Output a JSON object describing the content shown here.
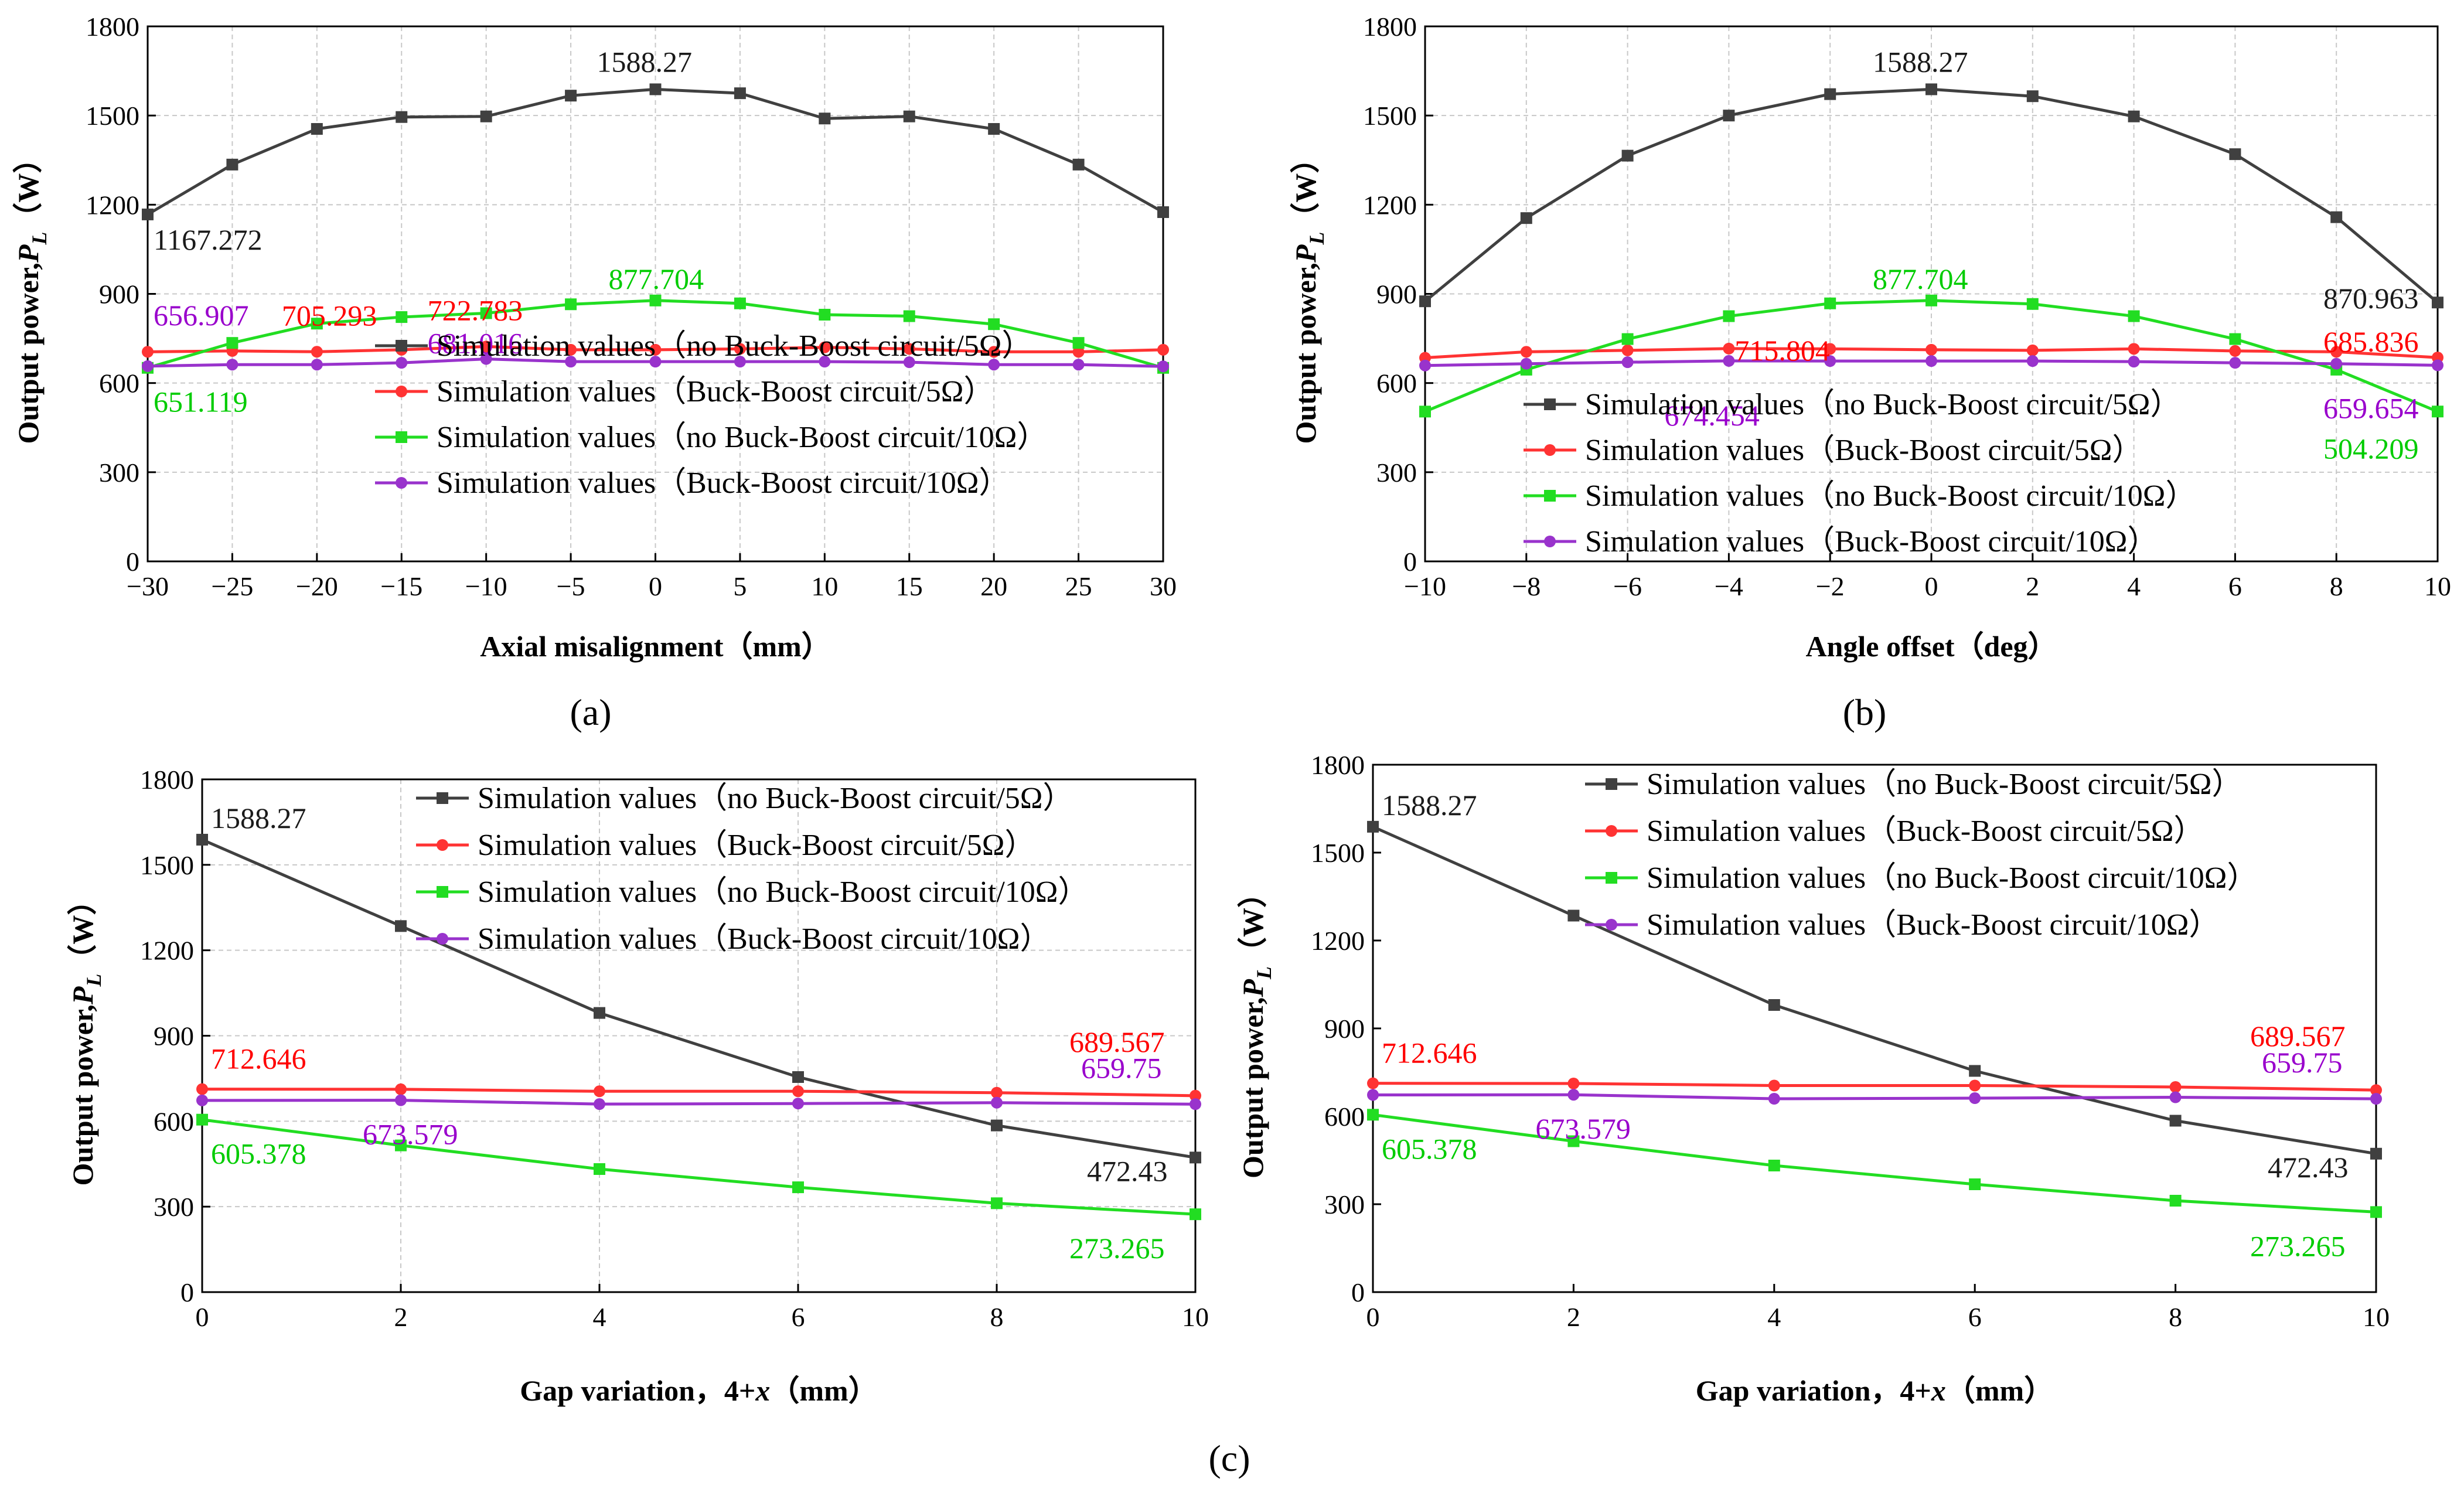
{
  "colors": {
    "no_bb_5": "#404040",
    "bb_5": "#ff3333",
    "no_bb_10": "#22dd22",
    "bb_10": "#9933cc",
    "label_black": "#1a1a1a",
    "label_red": "#ff0000",
    "label_green": "#00cc00",
    "label_purple": "#9900cc"
  },
  "panel_labels": [
    "(a)",
    "(b)",
    "(c)"
  ],
  "chart_data": [
    {
      "type": "line",
      "panel": "a",
      "xlabel": "Axial misalignment（mm）",
      "ylabel_main": "Output power,",
      "ylabel_sym": "P",
      "ylabel_sub": "L",
      "ylabel_unit": "（W）",
      "x": [
        -30,
        -25,
        -20,
        -15,
        -10,
        -5,
        0,
        5,
        10,
        15,
        20,
        25,
        30
      ],
      "x_ticks": [
        -30,
        -25,
        -20,
        -15,
        -10,
        -5,
        0,
        5,
        10,
        15,
        20,
        25,
        30
      ],
      "xlim": [
        -30,
        30
      ],
      "ylim": [
        0,
        1800
      ],
      "y_ticks": [
        0,
        300,
        600,
        900,
        1200,
        1500,
        1800
      ],
      "grid": true,
      "legend_position": "bottom-right",
      "series": [
        {
          "key": "no_bb_5",
          "name": "Simulation values（no Buck-Boost circuit/5Ω）",
          "values": [
            1167.272,
            1335,
            1455,
            1495,
            1497,
            1567,
            1588.27,
            1575,
            1490,
            1497,
            1455,
            1335,
            1175
          ]
        },
        {
          "key": "bb_5",
          "name": "Simulation values（Buck-Boost circuit/5Ω）",
          "values": [
            705,
            708,
            705.293,
            712,
            722.783,
            712,
            712,
            715,
            720,
            715,
            705,
            705,
            712
          ]
        },
        {
          "key": "no_bb_10",
          "name": "Simulation values（no Buck-Boost circuit/10Ω）",
          "values": [
            651.119,
            735,
            800,
            822,
            835,
            865,
            877.704,
            868,
            830,
            825,
            798,
            735,
            651
          ]
        },
        {
          "key": "bb_10",
          "name": "Simulation values（Buck-Boost circuit/10Ω）",
          "values": [
            656.907,
            662,
            662,
            668,
            681.016,
            672,
            672,
            672,
            672,
            670,
            662,
            662,
            656
          ]
        }
      ],
      "annotations": [
        {
          "text": "1588.27",
          "color": "black",
          "x": 0,
          "y": 1588.27,
          "dx": -100,
          "dy": -30
        },
        {
          "text": "1167.272",
          "color": "black",
          "x": -30,
          "y": 1167.272,
          "dx": 10,
          "dy": 60
        },
        {
          "text": "705.293",
          "color": "red",
          "x": -20,
          "y": 705.293,
          "dx": -60,
          "dy": -45
        },
        {
          "text": "722.783",
          "color": "red",
          "x": -10,
          "y": 722.783,
          "dx": -100,
          "dy": -45
        },
        {
          "text": "877.704",
          "color": "green",
          "x": 0,
          "y": 877.704,
          "dx": -80,
          "dy": -20
        },
        {
          "text": "656.907",
          "color": "purple",
          "x": -30,
          "y": 656.907,
          "dx": 10,
          "dy": -70
        },
        {
          "text": "681.016",
          "color": "purple",
          "x": -10,
          "y": 681.016,
          "dx": -100,
          "dy": -10
        },
        {
          "text": "651.119",
          "color": "green",
          "x": -30,
          "y": 651.119,
          "dx": 10,
          "dy": 75
        }
      ]
    },
    {
      "type": "line",
      "panel": "b",
      "xlabel": "Angle offset（deg）",
      "ylabel_main": "Output power,",
      "ylabel_sym": "P",
      "ylabel_sub": "L",
      "ylabel_unit": "（W）",
      "x": [
        -10,
        -8,
        -6,
        -4,
        -2,
        0,
        2,
        4,
        6,
        8,
        10
      ],
      "x_ticks": [
        -10,
        -8,
        -6,
        -4,
        -2,
        0,
        2,
        4,
        6,
        8,
        10
      ],
      "xlim": [
        -10,
        10
      ],
      "ylim": [
        0,
        1800
      ],
      "y_ticks": [
        0,
        300,
        600,
        900,
        1200,
        1500,
        1800
      ],
      "grid": true,
      "legend_position": "bottom-right",
      "series": [
        {
          "key": "no_bb_5",
          "name": "Simulation values（no Buck-Boost circuit/5Ω）",
          "values": [
            875,
            1155,
            1365,
            1500,
            1572,
            1588.27,
            1565,
            1497,
            1370,
            1158,
            870.963
          ]
        },
        {
          "key": "bb_5",
          "name": "Simulation values（Buck-Boost circuit/5Ω）",
          "values": [
            685,
            705,
            710,
            715.804,
            715,
            712,
            710,
            715,
            708,
            705,
            685.836
          ]
        },
        {
          "key": "no_bb_10",
          "name": "Simulation values（no Buck-Boost circuit/10Ω）",
          "values": [
            504,
            645,
            748,
            825,
            868,
            877.704,
            866,
            825,
            748,
            645,
            504.209
          ]
        },
        {
          "key": "bb_10",
          "name": "Simulation values（Buck-Boost circuit/10Ω）",
          "values": [
            659,
            665,
            670,
            674.454,
            674,
            674,
            674,
            672,
            668,
            665,
            659.654
          ]
        }
      ],
      "annotations": [
        {
          "text": "1588.27",
          "color": "black",
          "x": 0,
          "y": 1588.27,
          "dx": -100,
          "dy": -30
        },
        {
          "text": "877.704",
          "color": "green",
          "x": 0,
          "y": 877.704,
          "dx": -100,
          "dy": -20
        },
        {
          "text": "715.804",
          "color": "red",
          "x": -4,
          "y": 715.804,
          "dx": 10,
          "dy": 20
        },
        {
          "text": "674.454",
          "color": "purple",
          "x": -4,
          "y": 674.454,
          "dx": -110,
          "dy": 110
        },
        {
          "text": "870.963",
          "color": "black",
          "x": 10,
          "y": 870.963,
          "dx": -195,
          "dy": 10
        },
        {
          "text": "685.836",
          "color": "red",
          "x": 10,
          "y": 685.836,
          "dx": -195,
          "dy": -10
        },
        {
          "text": "659.654",
          "color": "purple",
          "x": 10,
          "y": 659.654,
          "dx": -195,
          "dy": 90
        },
        {
          "text": "504.209",
          "color": "green",
          "x": 10,
          "y": 504.209,
          "dx": -195,
          "dy": 80
        }
      ]
    },
    {
      "type": "line",
      "panel": "c-left",
      "xlabel_main": "Gap variation，4+",
      "xlabel_sym": "x",
      "xlabel_unit": "（mm）",
      "ylabel_main": "Output power,",
      "ylabel_sym": "P",
      "ylabel_sub": "L",
      "ylabel_unit": "（W）",
      "x": [
        0,
        2,
        4,
        6,
        8,
        10
      ],
      "x_ticks": [
        0,
        2,
        4,
        6,
        8,
        10
      ],
      "xlim": [
        0,
        10
      ],
      "ylim": [
        0,
        1800
      ],
      "y_ticks": [
        0,
        300,
        600,
        900,
        1200,
        1500,
        1800
      ],
      "grid": true,
      "legend_position": "top-right",
      "series": [
        {
          "key": "no_bb_5",
          "name": "Simulation values（no Buck-Boost circuit/5Ω）",
          "values": [
            1588.27,
            1285,
            980,
            755,
            585,
            472.43
          ]
        },
        {
          "key": "bb_5",
          "name": "Simulation values（Buck-Boost circuit/5Ω）",
          "values": [
            712.646,
            712,
            705,
            705,
            700,
            689.567
          ]
        },
        {
          "key": "no_bb_10",
          "name": "Simulation values（no Buck-Boost circuit/10Ω）",
          "values": [
            605.378,
            515,
            432,
            368,
            312,
            273.265
          ]
        },
        {
          "key": "bb_10",
          "name": "Simulation values（Buck-Boost circuit/10Ω）",
          "values": [
            673,
            673.579,
            660,
            662,
            665,
            659.75
          ]
        }
      ],
      "annotations": [
        {
          "text": "1588.27",
          "color": "black",
          "x": 0,
          "y": 1588.27,
          "dx": 15,
          "dy": -20
        },
        {
          "text": "712.646",
          "color": "red",
          "x": 0,
          "y": 712.646,
          "dx": 15,
          "dy": -35
        },
        {
          "text": "673.579",
          "color": "purple",
          "x": 2,
          "y": 673.579,
          "dx": -65,
          "dy": 75
        },
        {
          "text": "605.378",
          "color": "green",
          "x": 0,
          "y": 605.378,
          "dx": 15,
          "dy": 75
        },
        {
          "text": "689.567",
          "color": "red",
          "x": 10,
          "y": 689.567,
          "dx": -215,
          "dy": -75
        },
        {
          "text": "659.75",
          "color": "purple",
          "x": 10,
          "y": 659.75,
          "dx": -195,
          "dy": -45
        },
        {
          "text": "472.43",
          "color": "black",
          "x": 10,
          "y": 472.43,
          "dx": -185,
          "dy": 40
        },
        {
          "text": "273.265",
          "color": "green",
          "x": 10,
          "y": 273.265,
          "dx": -215,
          "dy": 75
        }
      ]
    },
    {
      "type": "line",
      "panel": "c-right",
      "xlabel_main": "Gap variation，4+",
      "xlabel_sym": "x",
      "xlabel_unit": "（mm）",
      "ylabel_main": "Output power,",
      "ylabel_sym": "P",
      "ylabel_sub": "L",
      "ylabel_unit": "（W）",
      "x": [
        0,
        2,
        4,
        6,
        8,
        10
      ],
      "x_ticks": [
        0,
        2,
        4,
        6,
        8,
        10
      ],
      "xlim": [
        0,
        10
      ],
      "ylim": [
        0,
        1800
      ],
      "y_ticks": [
        0,
        300,
        600,
        900,
        1200,
        1500,
        1800
      ],
      "grid": false,
      "legend_position": "top-right",
      "series": [
        {
          "key": "no_bb_5",
          "name": "Simulation values（no Buck-Boost circuit/5Ω）",
          "values": [
            1588.27,
            1285,
            980,
            755,
            585,
            472.43
          ]
        },
        {
          "key": "bb_5",
          "name": "Simulation values（Buck-Boost circuit/5Ω）",
          "values": [
            712.646,
            712,
            705,
            705,
            700,
            689.567
          ]
        },
        {
          "key": "no_bb_10",
          "name": "Simulation values（no Buck-Boost circuit/10Ω）",
          "values": [
            605.378,
            515,
            432,
            368,
            312,
            273.265
          ]
        },
        {
          "key": "bb_10",
          "name": "Simulation values（Buck-Boost circuit/10Ω）",
          "values": [
            673,
            673.579,
            660,
            662,
            665,
            659.75
          ]
        }
      ],
      "annotations": [
        {
          "text": "1588.27",
          "color": "black",
          "x": 0,
          "y": 1588.27,
          "dx": 15,
          "dy": -20
        },
        {
          "text": "712.646",
          "color": "red",
          "x": 0,
          "y": 712.646,
          "dx": 15,
          "dy": -35
        },
        {
          "text": "673.579",
          "color": "purple",
          "x": 2,
          "y": 673.579,
          "dx": -65,
          "dy": 75
        },
        {
          "text": "605.378",
          "color": "green",
          "x": 0,
          "y": 605.378,
          "dx": 15,
          "dy": 75
        },
        {
          "text": "689.567",
          "color": "red",
          "x": 10,
          "y": 689.567,
          "dx": -215,
          "dy": -75
        },
        {
          "text": "659.75",
          "color": "purple",
          "x": 10,
          "y": 659.75,
          "dx": -195,
          "dy": -45
        },
        {
          "text": "472.43",
          "color": "black",
          "x": 10,
          "y": 472.43,
          "dx": -185,
          "dy": 40
        },
        {
          "text": "273.265",
          "color": "green",
          "x": 10,
          "y": 273.265,
          "dx": -215,
          "dy": 75
        }
      ]
    }
  ]
}
